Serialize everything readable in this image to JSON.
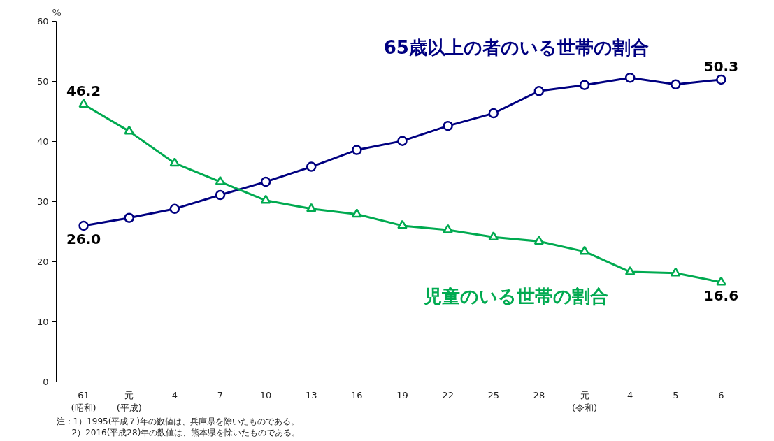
{
  "chart_data": {
    "type": "line",
    "categories": [
      "61\n(昭和)",
      "元\n(平成)",
      "4",
      "7",
      "10",
      "13",
      "16",
      "19",
      "22",
      "25",
      "28",
      "元\n(令和)",
      "4",
      "5",
      "6"
    ],
    "ylabel": "%",
    "ylim": [
      0,
      60
    ],
    "yticks": [
      0,
      10,
      20,
      30,
      40,
      50,
      60
    ],
    "grid": false,
    "series": [
      {
        "name": "65歳以上の者のいる世帯の割合",
        "color": "#000080",
        "marker": "circle",
        "values": [
          26.0,
          27.3,
          28.8,
          31.1,
          33.3,
          35.8,
          38.6,
          40.1,
          42.6,
          44.7,
          48.4,
          49.4,
          50.6,
          49.5,
          50.3
        ],
        "value_labels": [
          "26.0",
          null,
          null,
          null,
          null,
          null,
          null,
          null,
          null,
          null,
          null,
          null,
          null,
          null,
          "50.3"
        ]
      },
      {
        "name": "児童のいる世帯の割合",
        "color": "#00aa50",
        "marker": "triangle",
        "values": [
          46.2,
          41.7,
          36.4,
          33.3,
          30.2,
          28.8,
          27.9,
          26.0,
          25.3,
          24.1,
          23.4,
          21.7,
          18.3,
          18.1,
          16.6
        ],
        "value_labels": [
          "46.2",
          null,
          null,
          null,
          null,
          null,
          null,
          null,
          null,
          null,
          null,
          null,
          null,
          null,
          "16.6"
        ]
      }
    ],
    "annotations": [
      "注：1）1995(平成７)年の数値は、兵庫県を除いたものである。",
      "2）2016(平成28)年の数値は、熊本県を除いたものである。"
    ]
  }
}
